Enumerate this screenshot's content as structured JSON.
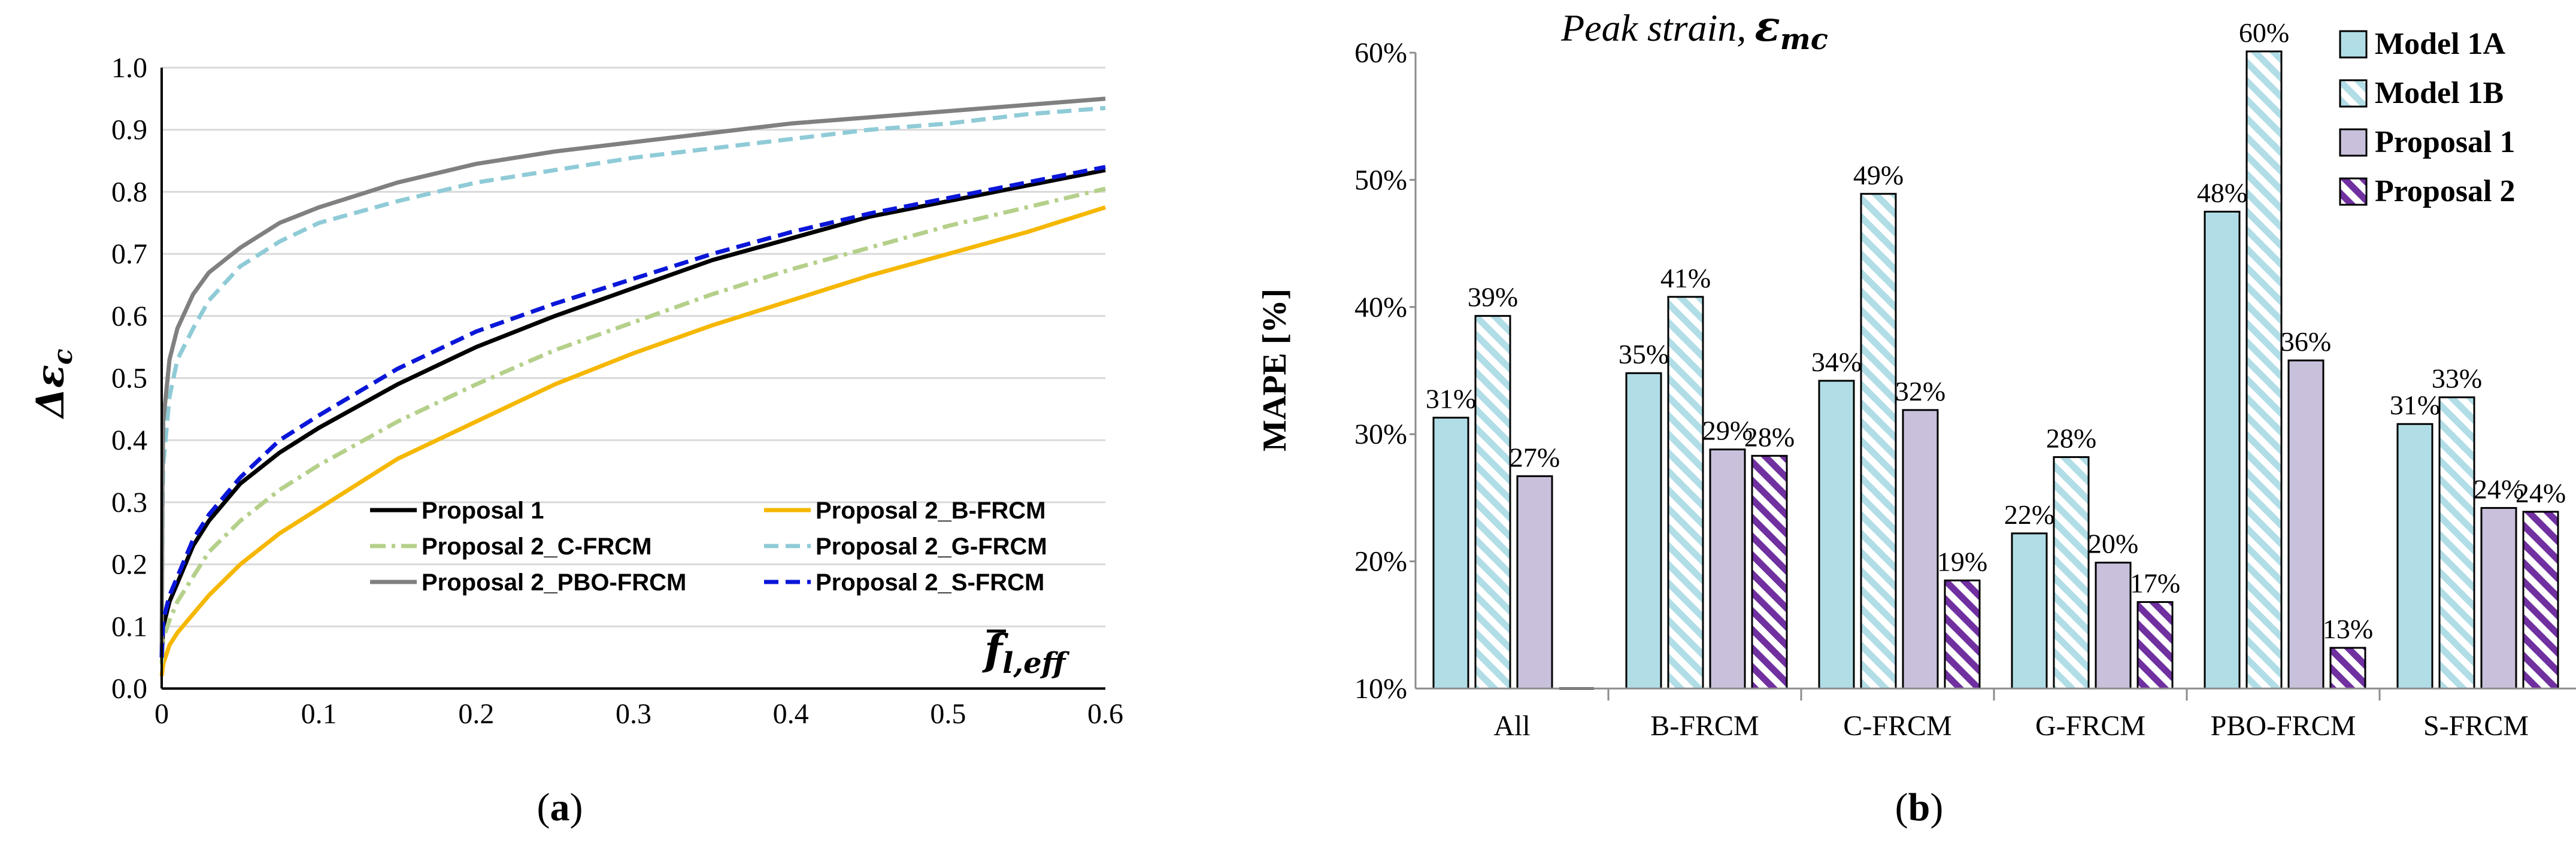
{
  "chart_data": [
    {
      "type": "line",
      "ylabel_symbol": "Δε",
      "ylabel_sub": "c",
      "xlabel_symbol": "f",
      "xlabel_sub": "l,eff",
      "xlim": [
        0,
        0.6
      ],
      "ylim": [
        0,
        1.0
      ],
      "xticks": [
        "0",
        "0.1",
        "0.2",
        "0.3",
        "0.4",
        "0.5",
        "0.6"
      ],
      "yticks": [
        "0.0",
        "0.1",
        "0.2",
        "0.3",
        "0.4",
        "0.5",
        "0.6",
        "0.7",
        "0.8",
        "0.9",
        "1.0"
      ],
      "grid": "horizontal",
      "legend_position": "bottom-right",
      "caption": "(a)",
      "series": [
        {
          "name": "Proposal 1",
          "color": "#000000",
          "dash": "solid",
          "x": [
            0,
            0.001,
            0.005,
            0.01,
            0.02,
            0.03,
            0.05,
            0.075,
            0.1,
            0.15,
            0.2,
            0.25,
            0.3,
            0.35,
            0.4,
            0.45,
            0.5,
            0.55,
            0.6
          ],
          "y": [
            0.05,
            0.1,
            0.14,
            0.17,
            0.23,
            0.27,
            0.33,
            0.38,
            0.42,
            0.49,
            0.55,
            0.6,
            0.645,
            0.69,
            0.725,
            0.76,
            0.785,
            0.81,
            0.835
          ]
        },
        {
          "name": "Proposal 2_B-FRCM",
          "color": "#f5b700",
          "dash": "solid",
          "x": [
            0,
            0.001,
            0.005,
            0.01,
            0.02,
            0.03,
            0.05,
            0.075,
            0.1,
            0.15,
            0.2,
            0.25,
            0.3,
            0.35,
            0.4,
            0.45,
            0.5,
            0.55,
            0.6
          ],
          "y": [
            0.02,
            0.04,
            0.07,
            0.09,
            0.12,
            0.15,
            0.2,
            0.25,
            0.29,
            0.37,
            0.43,
            0.49,
            0.54,
            0.585,
            0.625,
            0.665,
            0.7,
            0.735,
            0.775
          ]
        },
        {
          "name": "Proposal 2_C-FRCM",
          "color": "#b5d08a",
          "dash": "dashdot",
          "x": [
            0,
            0.001,
            0.005,
            0.01,
            0.02,
            0.03,
            0.05,
            0.075,
            0.1,
            0.15,
            0.2,
            0.25,
            0.3,
            0.35,
            0.4,
            0.45,
            0.5,
            0.55,
            0.6
          ],
          "y": [
            0.04,
            0.08,
            0.11,
            0.14,
            0.18,
            0.22,
            0.27,
            0.32,
            0.36,
            0.43,
            0.49,
            0.545,
            0.59,
            0.635,
            0.675,
            0.71,
            0.745,
            0.775,
            0.805
          ]
        },
        {
          "name": "Proposal 2_G-FRCM",
          "color": "#8fcbd7",
          "dash": "dashed",
          "x": [
            0,
            0.0005,
            0.001,
            0.005,
            0.01,
            0.02,
            0.03,
            0.05,
            0.075,
            0.1,
            0.15,
            0.2,
            0.25,
            0.3,
            0.35,
            0.4,
            0.45,
            0.5,
            0.55,
            0.6
          ],
          "y": [
            0.05,
            0.28,
            0.36,
            0.47,
            0.53,
            0.58,
            0.625,
            0.68,
            0.72,
            0.75,
            0.785,
            0.815,
            0.835,
            0.855,
            0.87,
            0.885,
            0.9,
            0.91,
            0.925,
            0.935
          ]
        },
        {
          "name": "Proposal 2_PBO-FRCM",
          "color": "#808080",
          "dash": "solid",
          "x": [
            0,
            0.0005,
            0.001,
            0.005,
            0.01,
            0.02,
            0.03,
            0.05,
            0.075,
            0.1,
            0.15,
            0.2,
            0.25,
            0.3,
            0.35,
            0.4,
            0.45,
            0.5,
            0.55,
            0.6
          ],
          "y": [
            0.05,
            0.34,
            0.43,
            0.53,
            0.58,
            0.635,
            0.67,
            0.71,
            0.75,
            0.775,
            0.815,
            0.845,
            0.865,
            0.88,
            0.895,
            0.91,
            0.92,
            0.93,
            0.94,
            0.95
          ]
        },
        {
          "name": "Proposal 2_S-FRCM",
          "color": "#0a16d8",
          "dash": "dashed",
          "x": [
            0,
            0.001,
            0.005,
            0.01,
            0.02,
            0.03,
            0.05,
            0.075,
            0.1,
            0.15,
            0.2,
            0.25,
            0.3,
            0.35,
            0.4,
            0.45,
            0.5,
            0.55,
            0.6
          ],
          "y": [
            0.05,
            0.11,
            0.15,
            0.18,
            0.24,
            0.28,
            0.34,
            0.4,
            0.44,
            0.515,
            0.575,
            0.62,
            0.66,
            0.7,
            0.735,
            0.765,
            0.79,
            0.815,
            0.84
          ]
        }
      ]
    },
    {
      "type": "bar",
      "title_prefix": "Peak strain,",
      "title_symbol": "ε",
      "title_sub": "mc",
      "ylabel": "MAPE [%]",
      "ylim": [
        10,
        60
      ],
      "yticks": [
        "10%",
        "20%",
        "30%",
        "40%",
        "50%",
        "60%"
      ],
      "categories": [
        "All",
        "B-FRCM",
        "C-FRCM",
        "G-FRCM",
        "PBO-FRCM",
        "S-FRCM"
      ],
      "legend_position": "top-right",
      "caption": "(b)",
      "series": [
        {
          "name": "Model 1A",
          "color": "#b1dde6",
          "pattern": "solid",
          "values": [
            31.3,
            34.8,
            34.2,
            22.2,
            47.5,
            30.8
          ],
          "labels": [
            "31%",
            "35%",
            "34%",
            "22%",
            "48%",
            "31%"
          ]
        },
        {
          "name": "Model 1B",
          "color": "#b1dde6",
          "pattern": "hatch",
          "values": [
            39.3,
            40.8,
            48.9,
            28.2,
            60.1,
            32.9
          ],
          "labels": [
            "39%",
            "41%",
            "49%",
            "28%",
            "60%",
            "33%"
          ]
        },
        {
          "name": "Proposal 1",
          "color": "#c9c1dc",
          "pattern": "solid",
          "values": [
            26.7,
            28.8,
            31.9,
            19.9,
            35.8,
            24.2
          ],
          "labels": [
            "27%",
            "29%",
            "32%",
            "20%",
            "36%",
            "24%"
          ]
        },
        {
          "name": "Proposal 2",
          "color": "#7030a0",
          "pattern": "hatch",
          "values": [
            null,
            28.3,
            18.5,
            16.8,
            13.2,
            23.9
          ],
          "labels": [
            "",
            "28%",
            "19%",
            "17%",
            "13%",
            "24%"
          ]
        }
      ]
    }
  ]
}
